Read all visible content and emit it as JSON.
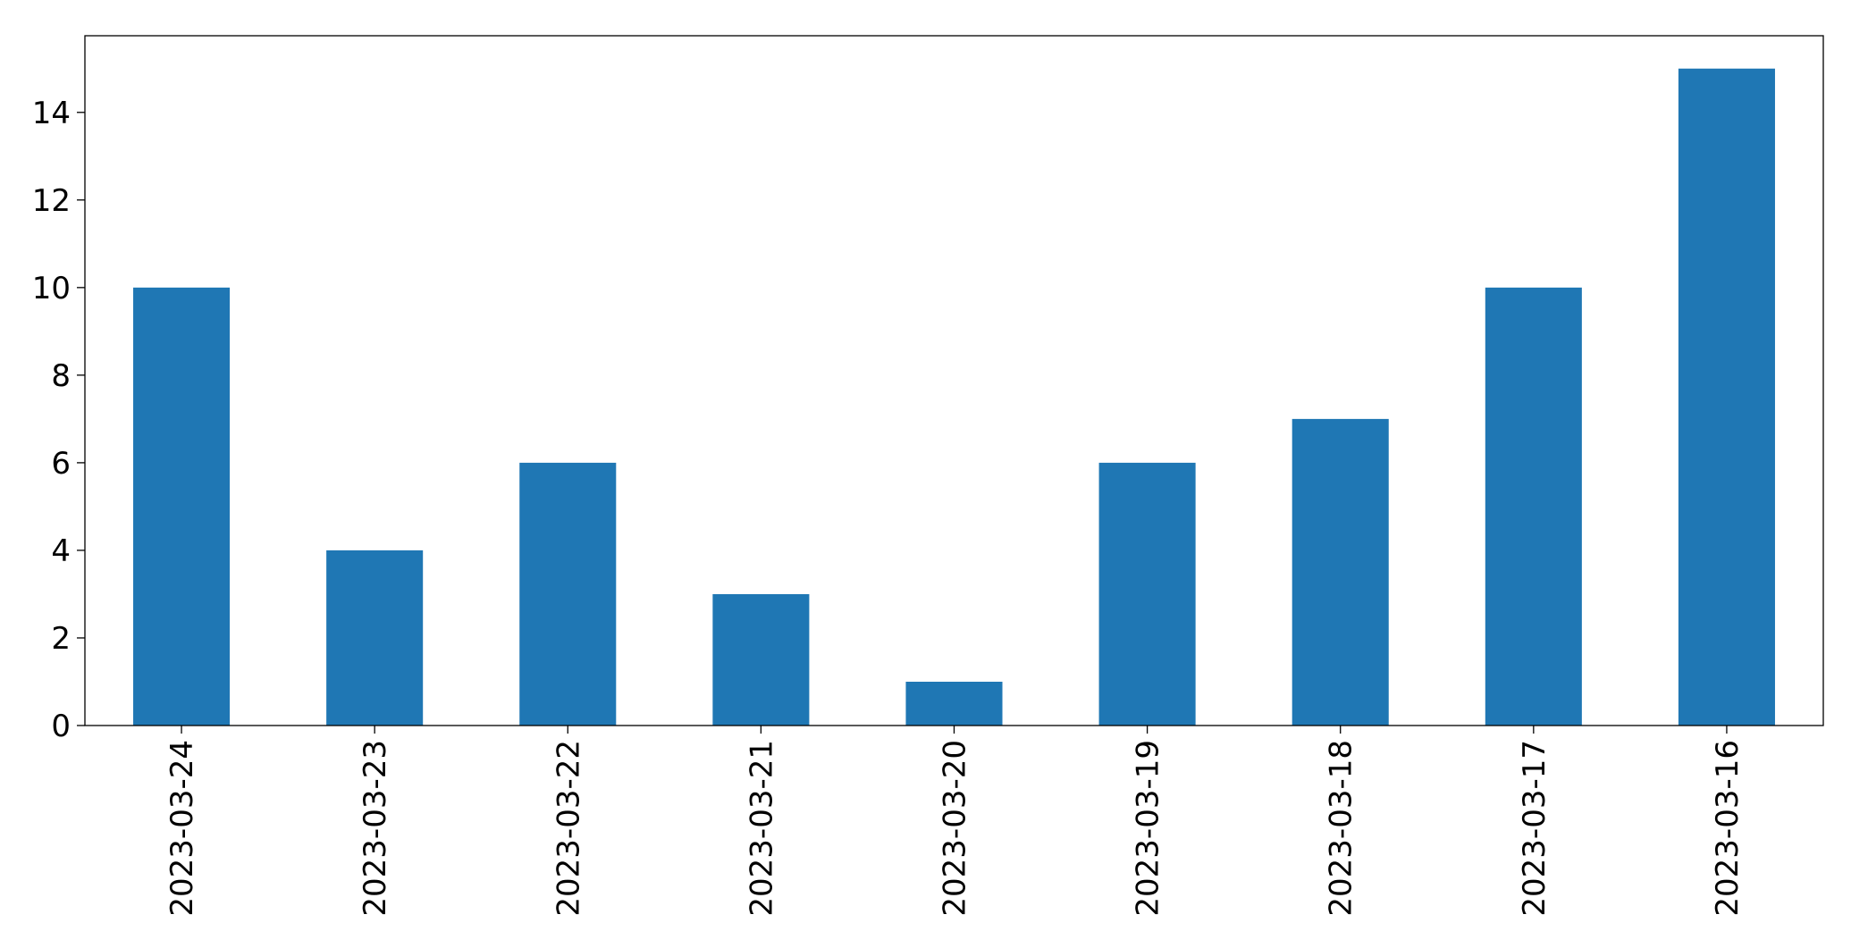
{
  "chart_data": {
    "type": "bar",
    "title": "",
    "xlabel": "",
    "ylabel": "",
    "categories": [
      "2023-03-24",
      "2023-03-23",
      "2023-03-22",
      "2023-03-21",
      "2023-03-20",
      "2023-03-19",
      "2023-03-18",
      "2023-03-17",
      "2023-03-16"
    ],
    "values": [
      10,
      4,
      6,
      3,
      1,
      6,
      7,
      10,
      15
    ],
    "ylim": [
      0,
      15.75
    ],
    "yticks": [
      0,
      2,
      4,
      6,
      8,
      10,
      12,
      14
    ],
    "bar_color": "#1f77b4",
    "grid": false,
    "legend": "none"
  }
}
